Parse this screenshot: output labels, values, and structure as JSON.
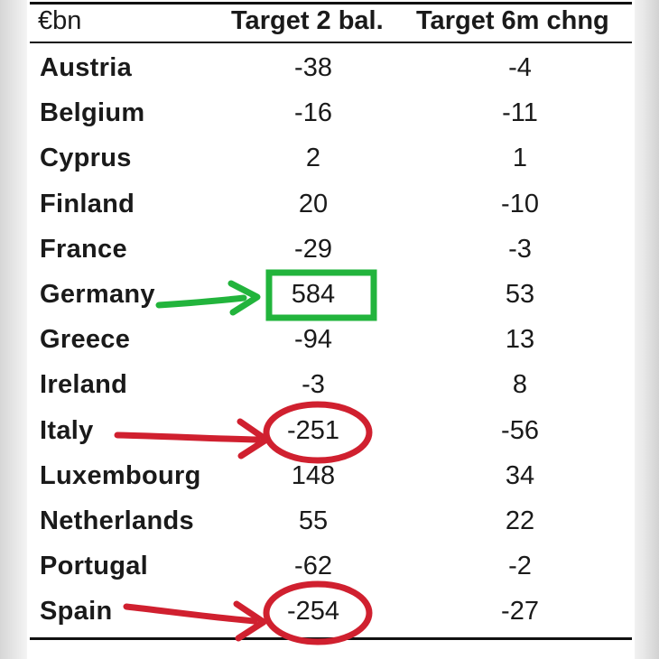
{
  "table": {
    "header": {
      "unit": "€bn",
      "col1": "Target 2 bal.",
      "col2": "Target 6m chng"
    },
    "rows": [
      {
        "country": "Austria",
        "balance": "-38",
        "change": "-4"
      },
      {
        "country": "Belgium",
        "balance": "-16",
        "change": "-11"
      },
      {
        "country": "Cyprus",
        "balance": "2",
        "change": "1"
      },
      {
        "country": "Finland",
        "balance": "20",
        "change": "-10"
      },
      {
        "country": "France",
        "balance": "-29",
        "change": "-3"
      },
      {
        "country": "Germany",
        "balance": "584",
        "change": "53"
      },
      {
        "country": "Greece",
        "balance": "-94",
        "change": "13"
      },
      {
        "country": "Ireland",
        "balance": "-3",
        "change": "8"
      },
      {
        "country": "Italy",
        "balance": "-251",
        "change": "-56"
      },
      {
        "country": "Luxembourg",
        "balance": "148",
        "change": "34"
      },
      {
        "country": "Netherlands",
        "balance": "55",
        "change": "22"
      },
      {
        "country": "Portugal",
        "balance": "-62",
        "change": "-2"
      },
      {
        "country": "Spain",
        "balance": "-254",
        "change": "-27"
      }
    ]
  },
  "chart_data": {
    "type": "table",
    "columns": [
      "€bn",
      "Target 2 bal.",
      "Target 6m chng"
    ],
    "rows": [
      [
        "Austria",
        -38,
        -4
      ],
      [
        "Belgium",
        -16,
        -11
      ],
      [
        "Cyprus",
        2,
        1
      ],
      [
        "Finland",
        20,
        -10
      ],
      [
        "France",
        -29,
        -3
      ],
      [
        "Germany",
        584,
        53
      ],
      [
        "Greece",
        -94,
        13
      ],
      [
        "Ireland",
        -3,
        8
      ],
      [
        "Italy",
        -251,
        -56
      ],
      [
        "Luxembourg",
        148,
        34
      ],
      [
        "Netherlands",
        55,
        22
      ],
      [
        "Portugal",
        -62,
        -2
      ],
      [
        "Spain",
        -254,
        -27
      ]
    ],
    "highlights": [
      {
        "country": "Germany",
        "column": "Target 2 bal.",
        "shape": "rectangle",
        "color": "#22b43c"
      },
      {
        "country": "Italy",
        "column": "Target 2 bal.",
        "shape": "ellipse",
        "color": "#d0202f"
      },
      {
        "country": "Spain",
        "column": "Target 2 bal.",
        "shape": "ellipse",
        "color": "#d0202f"
      }
    ]
  },
  "colors": {
    "green_highlight": "#22b43c",
    "red_highlight": "#d0202f",
    "text": "#1a1a1a"
  }
}
